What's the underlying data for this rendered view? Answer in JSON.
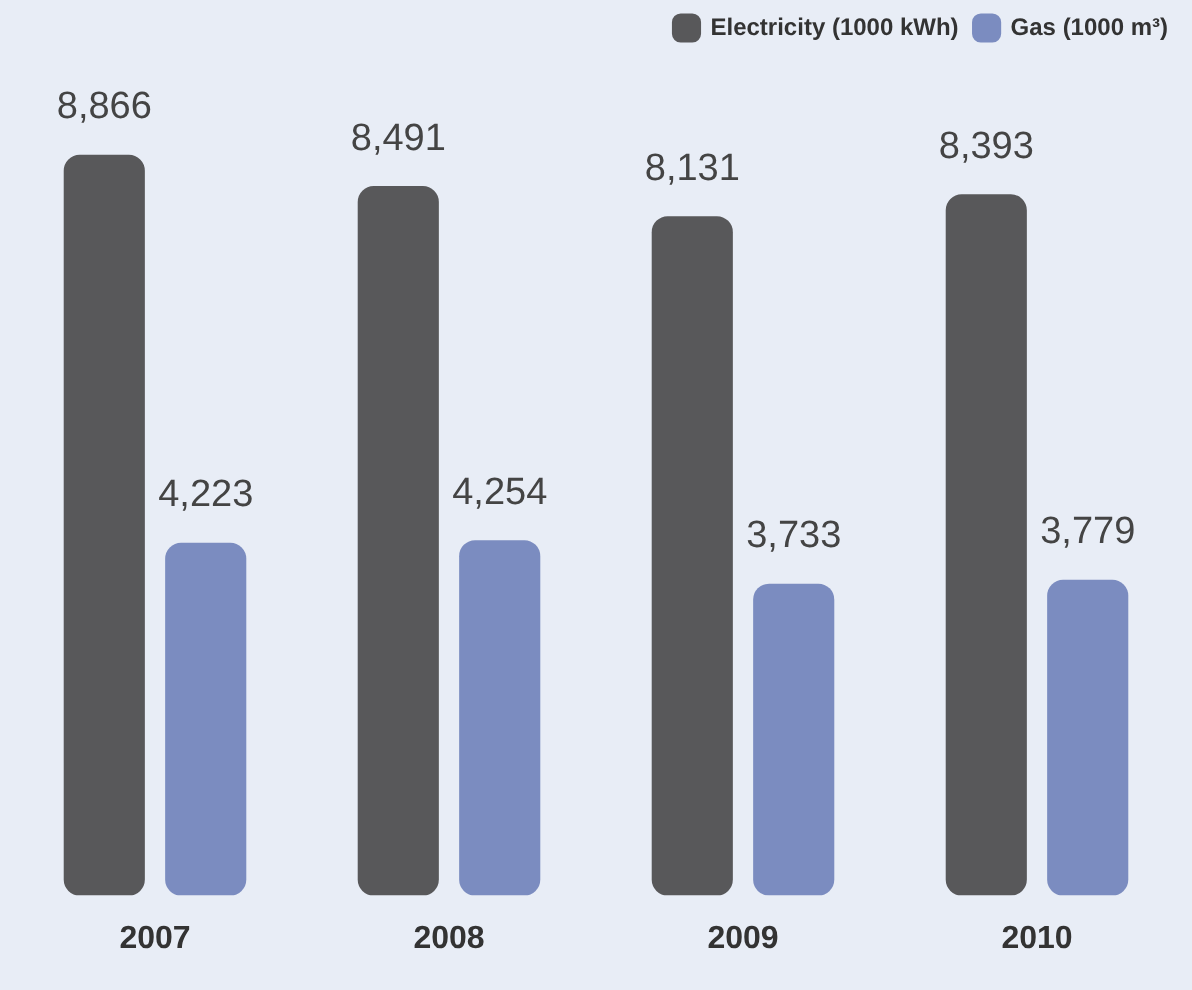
{
  "chart_data": {
    "type": "bar",
    "categories": [
      "2007",
      "2008",
      "2009",
      "2010"
    ],
    "series": [
      {
        "name": "Electricity (1000 kWh)",
        "color": "#58585a",
        "values": [
          8866,
          8491,
          8131,
          8393
        ],
        "value_labels": [
          "8,866",
          "8,491",
          "8,131",
          "8,393"
        ]
      },
      {
        "name": "Gas (1000 m³)",
        "color": "#7b8cc0",
        "values": [
          4223,
          4254,
          3733,
          3779
        ],
        "value_labels": [
          "4,223",
          "4,254",
          "3,733",
          "3,779"
        ]
      }
    ],
    "legend": "top right",
    "grid": false
  }
}
